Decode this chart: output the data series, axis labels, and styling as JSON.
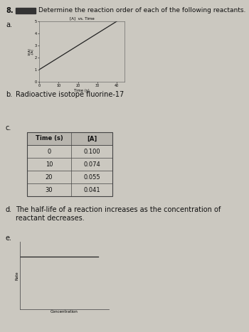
{
  "title": "8.",
  "main_question": "Determine the reaction order of each of the following reactants.",
  "section_a_label": "a.",
  "section_a_graph_title": "[A]  vs. Time",
  "section_a_xlabel": "Time (s)",
  "section_a_xdata": [
    0,
    10,
    20,
    30,
    40
  ],
  "section_a_ydata": [
    1,
    2,
    3,
    4,
    5
  ],
  "section_a_ylim": [
    0,
    5
  ],
  "section_a_xlim": [
    0,
    44
  ],
  "section_a_yticks": [
    0,
    1,
    2,
    3,
    4,
    5
  ],
  "section_a_xticks": [
    0,
    10,
    20,
    30,
    40
  ],
  "section_b_label": "b.",
  "section_b_text": "Radioactive isotope fluorine-17",
  "section_c_label": "c.",
  "table_headers": [
    "Time (s)",
    "[A]"
  ],
  "table_data": [
    [
      "0",
      "0.100"
    ],
    [
      "10",
      "0.074"
    ],
    [
      "20",
      "0.055"
    ],
    [
      "30",
      "0.041"
    ]
  ],
  "section_d_label": "d.",
  "section_d_text": "The half-life of a reaction increases as the concentration of reactant decreases.",
  "section_e_label": "e.",
  "section_e_xlabel": "Concentration",
  "section_e_ylabel": "Rate",
  "bg_color": "#cbc8c0",
  "text_color": "#111111",
  "graph_line_color": "#222222",
  "table_border_color": "#444444",
  "pencil_color": "#333333"
}
